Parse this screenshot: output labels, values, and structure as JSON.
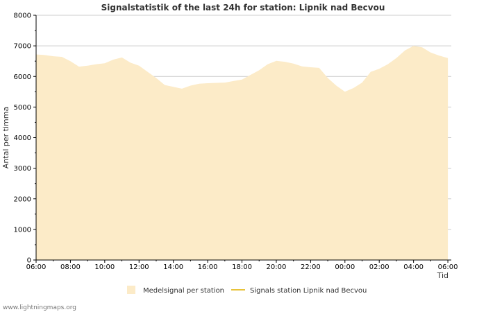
{
  "chart_data": {
    "type": "area",
    "title": "Signalstatistik of the last 24h for station: Lipnik nad Becvou",
    "xlabel": "Tid",
    "ylabel": "Antal per timma",
    "ylim": [
      0,
      8000
    ],
    "yticks": [
      0,
      1000,
      2000,
      3000,
      4000,
      5000,
      6000,
      7000,
      8000
    ],
    "xlim": [
      0,
      24.2
    ],
    "xticks": [
      {
        "value": 0,
        "label": "06:00"
      },
      {
        "value": 2,
        "label": "08:00"
      },
      {
        "value": 4,
        "label": "10:00"
      },
      {
        "value": 6,
        "label": "12:00"
      },
      {
        "value": 8,
        "label": "14:00"
      },
      {
        "value": 10,
        "label": "16:00"
      },
      {
        "value": 12,
        "label": "18:00"
      },
      {
        "value": 14,
        "label": "20:00"
      },
      {
        "value": 16,
        "label": "22:00"
      },
      {
        "value": 18,
        "label": "00:00"
      },
      {
        "value": 20,
        "label": "02:00"
      },
      {
        "value": 22,
        "label": "04:00"
      },
      {
        "value": 24,
        "label": "06:00"
      }
    ],
    "series": [
      {
        "name": "Medelsignal per station",
        "style": "area",
        "color": "#FCEBC8",
        "x": [
          0,
          0.5,
          1,
          1.5,
          2,
          2.5,
          3,
          3.5,
          4,
          4.5,
          5,
          5.5,
          6,
          6.5,
          7,
          7.5,
          8,
          8.5,
          9,
          9.5,
          10,
          10.5,
          11,
          11.5,
          12,
          12.5,
          13,
          13.5,
          14,
          14.5,
          15,
          15.5,
          16,
          16.5,
          17,
          17.5,
          18,
          18.5,
          19,
          19.5,
          20,
          20.5,
          21,
          21.5,
          22,
          22.5,
          23,
          23.5,
          24
        ],
        "values": [
          6720,
          6700,
          6660,
          6640,
          6500,
          6320,
          6350,
          6400,
          6430,
          6550,
          6620,
          6450,
          6350,
          6150,
          5950,
          5720,
          5660,
          5600,
          5700,
          5760,
          5780,
          5790,
          5800,
          5850,
          5900,
          6050,
          6200,
          6400,
          6510,
          6480,
          6420,
          6330,
          6300,
          6280,
          5950,
          5700,
          5500,
          5620,
          5800,
          6150,
          6250,
          6400,
          6600,
          6850,
          7000,
          6950,
          6780,
          6680,
          6600
        ]
      },
      {
        "name": "Signals station Lipnik nad Becvou",
        "style": "line",
        "color": "#E8C33A",
        "values": []
      }
    ],
    "legend_position": "bottom"
  },
  "footer": {
    "watermark": "www.lightningmaps.org"
  }
}
